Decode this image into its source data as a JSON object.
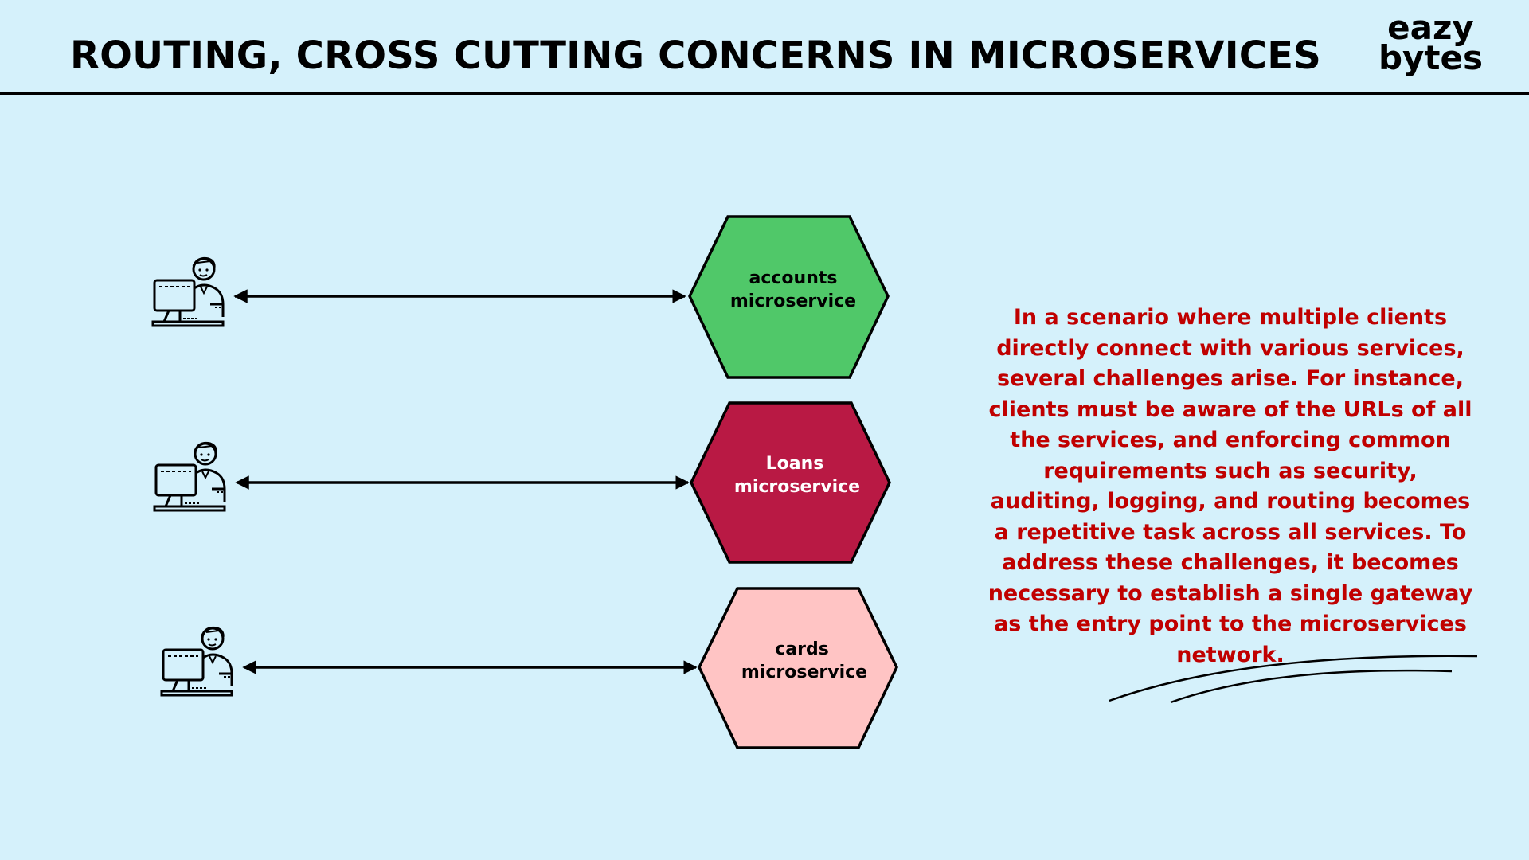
{
  "header": {
    "title": "ROUTING, CROSS CUTTING CONCERNS IN MICROSERVICES",
    "logo_line1": "eazy",
    "logo_line2": "bytes"
  },
  "services": [
    {
      "line1": "accounts",
      "line2": "microservice",
      "fill": "#50c869",
      "text_color": "#000000"
    },
    {
      "line1": "Loans",
      "line2": "microservice",
      "fill": "#b91944",
      "text_color": "#ffffff"
    },
    {
      "line1": "cards",
      "line2": "microservice",
      "fill": "#ffc4c4",
      "text_color": "#000000"
    }
  ],
  "clients": [
    {
      "icon": "client-at-computer-icon"
    },
    {
      "icon": "client-at-computer-icon"
    },
    {
      "icon": "client-at-computer-icon"
    }
  ],
  "note": "In a scenario where multiple clients directly connect with various services, several challenges arise. For instance, clients must be aware of the URLs of all the services, and enforcing common requirements such as security, auditing, logging, and routing becomes a repetitive task across all services. To address these challenges, it becomes necessary to establish a single gateway as the entry point to the microservices network.",
  "colors": {
    "background": "#d5f1fb",
    "note_text": "#c00000"
  }
}
